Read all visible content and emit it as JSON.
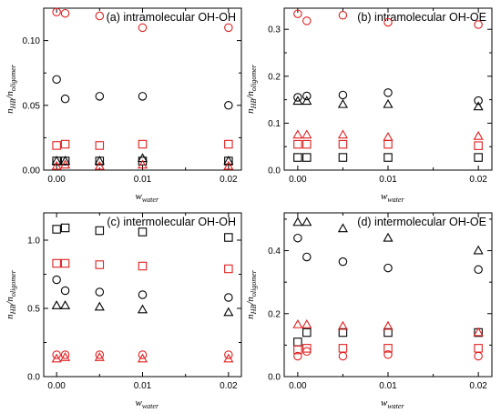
{
  "chart_data": [
    {
      "type": "scatter",
      "title": "(a) intramolecular OH-OH",
      "ylabel": {
        "n": "n",
        "hb": "HB",
        "sep": "/n",
        "olig": "oligomer"
      },
      "xlabel": {
        "w": "w",
        "sub": "water"
      },
      "xlim": [
        -0.0015,
        0.0215
      ],
      "ylim": [
        0,
        0.125
      ],
      "xticks": [
        "0.00",
        "0.01",
        "0.02"
      ],
      "xtick_values": [
        0,
        0.01,
        0.02
      ],
      "yticks": [
        "0.00",
        "0.05",
        "0.10"
      ],
      "ytick_values": [
        0,
        0.05,
        0.1
      ],
      "x": [
        0,
        0.001,
        0.005,
        0.01,
        0.02
      ],
      "series": [
        {
          "marker": "circle",
          "color": "#000000",
          "values": [
            0.07,
            0.055,
            0.057,
            0.057,
            0.05
          ]
        },
        {
          "marker": "square",
          "color": "#000000",
          "values": [
            0.007,
            0.007,
            0.007,
            0.007,
            0.007
          ]
        },
        {
          "marker": "triangle",
          "color": "#000000",
          "values": [
            0.007,
            0.007,
            0.007,
            0.009,
            0.007
          ]
        },
        {
          "marker": "circle",
          "color": "#e02020",
          "values": [
            0.122,
            0.121,
            0.119,
            0.11,
            0.11
          ]
        },
        {
          "marker": "square",
          "color": "#e02020",
          "values": [
            0.019,
            0.02,
            0.019,
            0.02,
            0.02
          ]
        },
        {
          "marker": "triangle",
          "color": "#e02020",
          "values": [
            0.003,
            0.004,
            0.003,
            0.004,
            0.003
          ]
        }
      ]
    },
    {
      "type": "scatter",
      "title": "(b) intramolecular OH-OE",
      "ylabel": {
        "n": "n",
        "hb": "HB",
        "sep": "/n",
        "olig": "oligomer"
      },
      "xlabel": {
        "w": "w",
        "sub": "water"
      },
      "xlim": [
        -0.0015,
        0.0215
      ],
      "ylim": [
        0,
        0.345
      ],
      "xticks": [
        "0.00",
        "0.01",
        "0.02"
      ],
      "xtick_values": [
        0,
        0.01,
        0.02
      ],
      "yticks": [
        "0.0",
        "0.1",
        "0.2",
        "0.3"
      ],
      "ytick_values": [
        0,
        0.1,
        0.2,
        0.3
      ],
      "x": [
        0,
        0.001,
        0.005,
        0.01,
        0.02
      ],
      "series": [
        {
          "marker": "circle",
          "color": "#000000",
          "values": [
            0.155,
            0.158,
            0.16,
            0.165,
            0.148
          ]
        },
        {
          "marker": "triangle",
          "color": "#000000",
          "values": [
            0.147,
            0.147,
            0.14,
            0.14,
            0.135
          ]
        },
        {
          "marker": "square",
          "color": "#000000",
          "values": [
            0.027,
            0.027,
            0.027,
            0.027,
            0.027
          ]
        },
        {
          "marker": "circle",
          "color": "#e02020",
          "values": [
            0.333,
            0.318,
            0.33,
            0.315,
            0.31
          ]
        },
        {
          "marker": "triangle",
          "color": "#e02020",
          "values": [
            0.075,
            0.075,
            0.075,
            0.07,
            0.072
          ]
        },
        {
          "marker": "square",
          "color": "#e02020",
          "values": [
            0.055,
            0.055,
            0.055,
            0.055,
            0.052
          ]
        }
      ]
    },
    {
      "type": "scatter",
      "title": "(c) intermolecular OH-OH",
      "ylabel": {
        "n": "n",
        "hb": "HB",
        "sep": "/n",
        "olig": "oligomer"
      },
      "xlabel": {
        "w": "w",
        "sub": "water"
      },
      "xlim": [
        -0.0015,
        0.0215
      ],
      "ylim": [
        0,
        1.2
      ],
      "xticks": [
        "0.00",
        "0.01",
        "0.02"
      ],
      "xtick_values": [
        0,
        0.01,
        0.02
      ],
      "yticks": [
        "0.0",
        "0.5",
        "1.0"
      ],
      "ytick_values": [
        0,
        0.5,
        1
      ],
      "x": [
        0,
        0.001,
        0.005,
        0.01,
        0.02
      ],
      "series": [
        {
          "marker": "square",
          "color": "#000000",
          "values": [
            1.08,
            1.09,
            1.07,
            1.06,
            1.02
          ]
        },
        {
          "marker": "circle",
          "color": "#000000",
          "values": [
            0.71,
            0.63,
            0.62,
            0.6,
            0.58
          ]
        },
        {
          "marker": "triangle",
          "color": "#000000",
          "values": [
            0.52,
            0.52,
            0.51,
            0.49,
            0.47
          ]
        },
        {
          "marker": "square",
          "color": "#e02020",
          "values": [
            0.83,
            0.83,
            0.82,
            0.81,
            0.79
          ]
        },
        {
          "marker": "circle",
          "color": "#e02020",
          "values": [
            0.16,
            0.16,
            0.16,
            0.16,
            0.16
          ]
        },
        {
          "marker": "triangle",
          "color": "#e02020",
          "values": [
            0.13,
            0.14,
            0.14,
            0.13,
            0.13
          ]
        }
      ]
    },
    {
      "type": "scatter",
      "title": "(d) intermolecular OH-OE",
      "ylabel": {
        "n": "n",
        "hb": "HB",
        "sep": "/n",
        "olig": "oligomer"
      },
      "xlabel": {
        "w": "w",
        "sub": "water"
      },
      "xlim": [
        -0.0015,
        0.0215
      ],
      "ylim": [
        0,
        0.52
      ],
      "xticks": [
        "0.00",
        "0.01",
        "0.02"
      ],
      "xtick_values": [
        0,
        0.01,
        0.02
      ],
      "yticks": [
        "0.0",
        "0.2",
        "0.4"
      ],
      "ytick_values": [
        0,
        0.2,
        0.4
      ],
      "x": [
        0,
        0.001,
        0.005,
        0.01,
        0.02
      ],
      "series": [
        {
          "marker": "triangle",
          "color": "#000000",
          "values": [
            0.49,
            0.49,
            0.47,
            0.44,
            0.4
          ]
        },
        {
          "marker": "circle",
          "color": "#000000",
          "values": [
            0.44,
            0.38,
            0.365,
            0.345,
            0.34
          ]
        },
        {
          "marker": "square",
          "color": "#000000",
          "values": [
            0.11,
            0.14,
            0.14,
            0.14,
            0.14
          ]
        },
        {
          "marker": "triangle",
          "color": "#e02020",
          "values": [
            0.165,
            0.165,
            0.16,
            0.16,
            0.14
          ]
        },
        {
          "marker": "square",
          "color": "#e02020",
          "values": [
            0.085,
            0.09,
            0.09,
            0.09,
            0.09
          ]
        },
        {
          "marker": "circle",
          "color": "#e02020",
          "values": [
            0.065,
            0.08,
            0.065,
            0.07,
            0.065
          ]
        }
      ]
    }
  ]
}
